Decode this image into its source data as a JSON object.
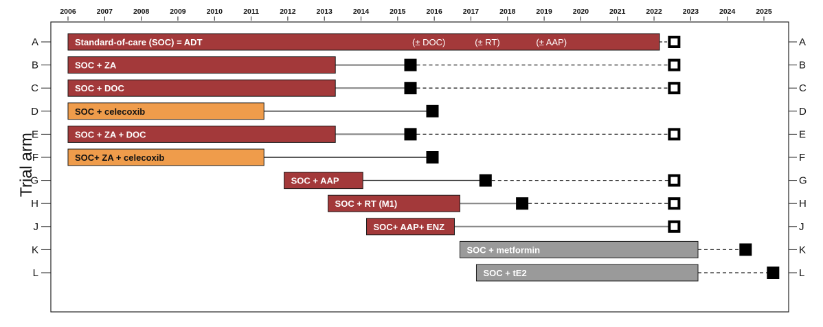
{
  "chart_data": {
    "type": "timeline",
    "title": "",
    "xlabel": "",
    "ylabel": "Trial arm",
    "xlim": [
      2005.65,
      2025.55
    ],
    "x_ticks": [
      "2006",
      "2007",
      "2008",
      "2009",
      "2010",
      "2011",
      "2012",
      "2013",
      "2014",
      "2015",
      "2016",
      "2017",
      "2018",
      "2019",
      "2020",
      "2021",
      "2022",
      "2023",
      "2024",
      "2025"
    ],
    "legend": [],
    "colors": {
      "recruitment_red": "#a3393a",
      "recruitment_orange": "#ef9c4b",
      "recruitment_gray": "#9a9a9a",
      "followup_line_solid": "#222222",
      "followup_line_gray": "#888888",
      "result_marker_filled": "#000000",
      "result_marker_open": "#ffffff"
    },
    "arms": [
      {
        "id": "A",
        "label": "Standard-of-care (SOC) = ADT",
        "color": "red",
        "start": 2006.0,
        "end": 2022.15,
        "solid_to": null,
        "solid_style": null,
        "marker_x": 2022.55,
        "marker": "open",
        "dashed_to": null
      },
      {
        "id": "B",
        "label": "SOC + ZA",
        "color": "red",
        "start": 2006.0,
        "end": 2013.3,
        "solid_to": 2015.35,
        "solid_style": "gray",
        "marker_x": 2015.35,
        "marker": "filled",
        "dashed_to": 2022.55,
        "end_marker": "open"
      },
      {
        "id": "C",
        "label": "SOC + DOC",
        "color": "red",
        "start": 2006.0,
        "end": 2013.3,
        "solid_to": 2015.35,
        "solid_style": "gray",
        "marker_x": 2015.35,
        "marker": "filled",
        "dashed_to": 2022.55,
        "end_marker": "open"
      },
      {
        "id": "D",
        "label": "SOC + celecoxib",
        "color": "orange",
        "start": 2006.0,
        "end": 2011.35,
        "solid_to": 2015.95,
        "solid_style": "dark",
        "marker_x": 2015.95,
        "marker": "filled",
        "dashed_to": null
      },
      {
        "id": "E",
        "label": "SOC + ZA + DOC",
        "color": "red",
        "start": 2006.0,
        "end": 2013.3,
        "solid_to": 2015.35,
        "solid_style": "gray",
        "marker_x": 2015.35,
        "marker": "filled",
        "dashed_to": 2022.55,
        "end_marker": "open"
      },
      {
        "id": "F",
        "label": "SOC+ ZA + celecoxib",
        "color": "orange",
        "start": 2006.0,
        "end": 2011.35,
        "solid_to": 2015.95,
        "solid_style": "dark",
        "marker_x": 2015.95,
        "marker": "filled",
        "dashed_to": null
      },
      {
        "id": "G",
        "label": "SOC + AAP",
        "color": "red",
        "start": 2011.9,
        "end": 2014.05,
        "solid_to": 2017.4,
        "solid_style": "dark",
        "marker_x": 2017.4,
        "marker": "filled",
        "dashed_to": 2022.55,
        "end_marker": "open"
      },
      {
        "id": "H",
        "label": "SOC + RT (M1)",
        "color": "red",
        "start": 2013.1,
        "end": 2016.7,
        "solid_to": 2018.4,
        "solid_style": "gray",
        "marker_x": 2018.4,
        "marker": "filled",
        "dashed_to": 2022.55,
        "end_marker": "open"
      },
      {
        "id": "J",
        "label": "SOC+ AAP+ ENZ",
        "color": "red",
        "start": 2014.15,
        "end": 2016.55,
        "solid_to": 2022.55,
        "solid_style": "gray",
        "marker_x": 2022.55,
        "marker": "open",
        "dashed_to": null
      },
      {
        "id": "K",
        "label": "SOC + metformin",
        "color": "gray",
        "start": 2016.7,
        "end": 2023.2,
        "solid_to": null,
        "solid_style": null,
        "marker_x": 2024.5,
        "marker": "filled",
        "dashed_from": 2023.2,
        "dashed_to": 2024.5
      },
      {
        "id": "L",
        "label": "SOC + tE2",
        "color": "gray",
        "start": 2017.15,
        "end": 2023.2,
        "solid_to": null,
        "solid_style": null,
        "marker_x": 2025.25,
        "marker": "filled",
        "dashed_from": 2023.2,
        "dashed_to": 2025.25
      }
    ],
    "annotations": [
      {
        "text": "(± DOC)",
        "x": 2015.85
      },
      {
        "text": "(± RT)",
        "x": 2017.45
      },
      {
        "text": "(± AAP)",
        "x": 2019.2
      }
    ]
  }
}
